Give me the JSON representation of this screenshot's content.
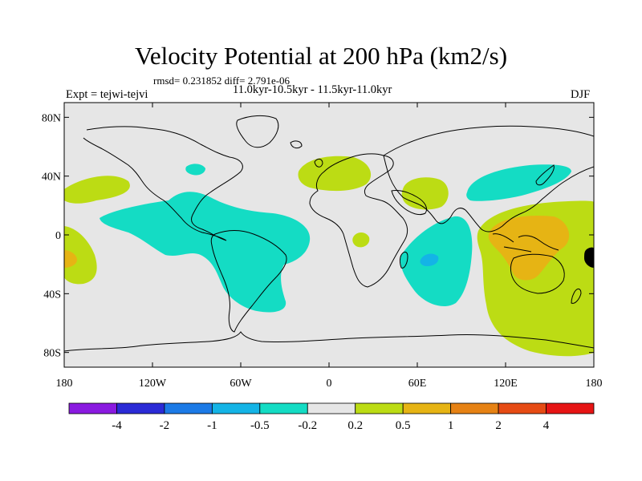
{
  "title": "Velocity Potential at 200 hPa (km2/s)",
  "stats": "rmsd= 0.231852 diff= 2.791e-06",
  "experiment": "Expt = tejwi-tejvi",
  "period": "11.0kyr-10.5kyr - 11.5kyr-11.0kyr",
  "season": "DJF",
  "map": {
    "lon_range": [
      -180,
      180
    ],
    "lat_range": [
      -90,
      90
    ],
    "lat_ticks": [
      "80N",
      "40N",
      "0",
      "40S",
      "80S"
    ],
    "lon_ticks": [
      "180",
      "120W",
      "60W",
      "0",
      "60E",
      "120E",
      "180"
    ]
  },
  "colorbar": {
    "colors": [
      "#8a1ae0",
      "#2b2bd6",
      "#1c7ae6",
      "#14b4e6",
      "#14dcc4",
      "#e6e6e6",
      "#bcdc14",
      "#e6b414",
      "#e68214",
      "#e64b14",
      "#e61414"
    ],
    "labels": [
      "-4",
      "-2",
      "-1",
      "-0.5",
      "-0.2",
      "0.2",
      "0.5",
      "1",
      "2",
      "4"
    ]
  },
  "colors": {
    "background": "#e6e6e6",
    "neg_weak": "#14dcc4",
    "neg_mod": "#14b4e6",
    "pos_weak": "#bcdc14",
    "pos_mod": "#e6b414",
    "coast": "#000000"
  },
  "regions": [
    {
      "sign": "positive",
      "level": "0.2 to 0.5",
      "area": "North Pacific east of dateline"
    },
    {
      "sign": "positive",
      "level": "0.2 to 0.5",
      "area": "Central and eastern tropical Pacific"
    },
    {
      "sign": "positive",
      "level": "0.5 to 1",
      "area": "Central Pacific near equator"
    },
    {
      "sign": "negative",
      "level": "-0.5 to -0.2",
      "area": "North America"
    },
    {
      "sign": "negative",
      "level": "-0.5 to -0.2",
      "area": "Eastern Pacific and South America"
    },
    {
      "sign": "positive",
      "level": "0.2 to 0.5",
      "area": "Europe"
    },
    {
      "sign": "positive",
      "level": "0.2 to 0.5",
      "area": "Arabia"
    },
    {
      "sign": "positive",
      "level": "0.2 to 0.5",
      "area": "Central Africa"
    },
    {
      "sign": "negative",
      "level": "-0.5 to -0.2",
      "area": "Indian Ocean"
    },
    {
      "sign": "negative",
      "level": "-1 to -0.5",
      "area": "Madagascar region"
    },
    {
      "sign": "negative",
      "level": "-0.5 to -0.2",
      "area": "East Asia"
    },
    {
      "sign": "positive",
      "level": "0.2 to 0.5",
      "area": "Western Pacific and Australia"
    },
    {
      "sign": "positive",
      "level": "0.5 to 1",
      "area": "Maritime continent and northern Australia"
    }
  ]
}
